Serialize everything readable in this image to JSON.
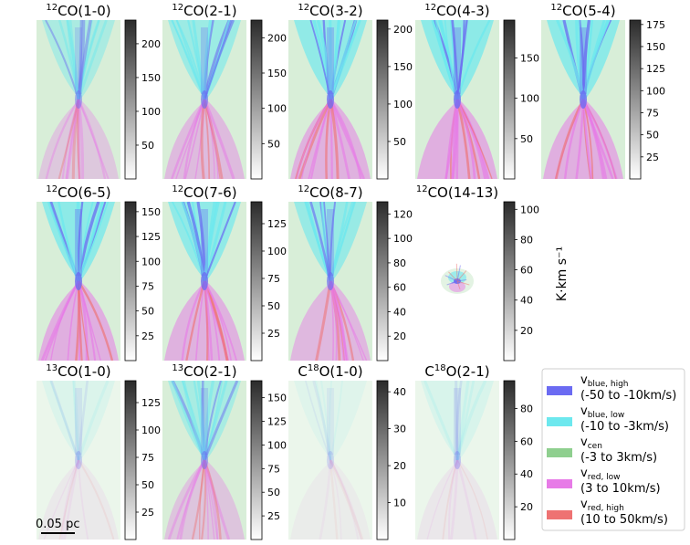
{
  "figure": {
    "cbar_unit_label": "K·km s⁻¹",
    "scale_bar_label": "0.05 pc",
    "colors": {
      "blue_high": "#6b6bf2",
      "blue_low": "#6de8ee",
      "center": "#8fcf8f",
      "red_low": "#e77be7",
      "red_high": "#ee7272"
    }
  },
  "legend": [
    {
      "symbol": "v",
      "sub": "blue, high",
      "range": "(-50 to -10km/s)",
      "color": "#6b6bf2"
    },
    {
      "symbol": "v",
      "sub": "blue, low",
      "range": "(-10 to -3km/s)",
      "color": "#6de8ee"
    },
    {
      "symbol": "v",
      "sub": "cen",
      "range": "(-3 to 3km/s)",
      "color": "#8fcf8f"
    },
    {
      "symbol": "v",
      "sub": "red, low",
      "range": "(3 to 10km/s)",
      "color": "#e77be7"
    },
    {
      "symbol": "v",
      "sub": "red, high",
      "range": "(10 to 50km/s)",
      "color": "#ee7272"
    }
  ],
  "chart_data": [
    {
      "type": "heatmap",
      "iso": "12",
      "mol": "CO",
      "trans": "(1-0)",
      "title": "12CO(1-0)",
      "cbar_range": [
        0,
        235
      ],
      "cbar_ticks": [
        50,
        100,
        150,
        200
      ],
      "style": "full",
      "strength": 0.6
    },
    {
      "type": "heatmap",
      "iso": "12",
      "mol": "CO",
      "trans": "(2-1)",
      "title": "12CO(2-1)",
      "cbar_range": [
        0,
        225
      ],
      "cbar_ticks": [
        50,
        100,
        150,
        200
      ],
      "style": "full",
      "strength": 0.8
    },
    {
      "type": "heatmap",
      "iso": "12",
      "mol": "CO",
      "trans": "(3-2)",
      "title": "12CO(3-2)",
      "cbar_range": [
        0,
        212
      ],
      "cbar_ticks": [
        50,
        100,
        150,
        200
      ],
      "style": "full",
      "strength": 0.95
    },
    {
      "type": "heatmap",
      "iso": "12",
      "mol": "CO",
      "trans": "(4-3)",
      "title": "12CO(4-3)",
      "cbar_range": [
        0,
        197
      ],
      "cbar_ticks": [
        50,
        100,
        150
      ],
      "style": "full",
      "strength": 1.0
    },
    {
      "type": "heatmap",
      "iso": "12",
      "mol": "CO",
      "trans": "(5-4)",
      "title": "12CO(5-4)",
      "cbar_range": [
        0,
        180
      ],
      "cbar_ticks": [
        25,
        50,
        75,
        100,
        125,
        150,
        175
      ],
      "style": "full",
      "strength": 1.0
    },
    {
      "type": "heatmap",
      "iso": "12",
      "mol": "CO",
      "trans": "(6-5)",
      "title": "12CO(6-5)",
      "cbar_range": [
        0,
        160
      ],
      "cbar_ticks": [
        25,
        50,
        75,
        100,
        125,
        150
      ],
      "style": "full",
      "strength": 1.0
    },
    {
      "type": "heatmap",
      "iso": "12",
      "mol": "CO",
      "trans": "(7-6)",
      "title": "12CO(7-6)",
      "cbar_range": [
        0,
        145
      ],
      "cbar_ticks": [
        25,
        50,
        75,
        100,
        125
      ],
      "style": "full",
      "strength": 0.95
    },
    {
      "type": "heatmap",
      "iso": "12",
      "mol": "CO",
      "trans": "(8-7)",
      "title": "12CO(8-7)",
      "cbar_range": [
        0,
        130
      ],
      "cbar_ticks": [
        20,
        40,
        60,
        80,
        100,
        120
      ],
      "style": "full",
      "strength": 0.85
    },
    {
      "type": "heatmap",
      "iso": "12",
      "mol": "CO",
      "trans": "(14-13)",
      "title": "12CO(14-13)",
      "cbar_range": [
        0,
        105
      ],
      "cbar_ticks": [
        20,
        40,
        60,
        80,
        100
      ],
      "style": "compact",
      "strength": 0.9
    },
    {
      "type": "heatmap",
      "iso": "13",
      "mol": "CO",
      "trans": "(1-0)",
      "title": "13CO(1-0)",
      "cbar_range": [
        0,
        145
      ],
      "cbar_ticks": [
        25,
        50,
        75,
        100,
        125
      ],
      "style": "faint",
      "strength": 0.35
    },
    {
      "type": "heatmap",
      "iso": "13",
      "mol": "CO",
      "trans": "(2-1)",
      "title": "13CO(2-1)",
      "cbar_range": [
        0,
        168
      ],
      "cbar_ticks": [
        25,
        50,
        75,
        100,
        125,
        150
      ],
      "style": "full",
      "strength": 0.65
    },
    {
      "type": "heatmap",
      "iso": "18",
      "mol": "C",
      "molB": "O",
      "trans": "(1-0)",
      "title": "C18O(1-0)",
      "cbar_range": [
        0,
        43
      ],
      "cbar_ticks": [
        10,
        20,
        30,
        40
      ],
      "style": "faint",
      "strength": 0.25
    },
    {
      "type": "heatmap",
      "iso": "18",
      "mol": "C",
      "molB": "O",
      "trans": "(2-1)",
      "title": "C18O(2-1)",
      "cbar_range": [
        0,
        97
      ],
      "cbar_ticks": [
        20,
        40,
        60,
        80
      ],
      "style": "faint",
      "strength": 0.4
    }
  ]
}
